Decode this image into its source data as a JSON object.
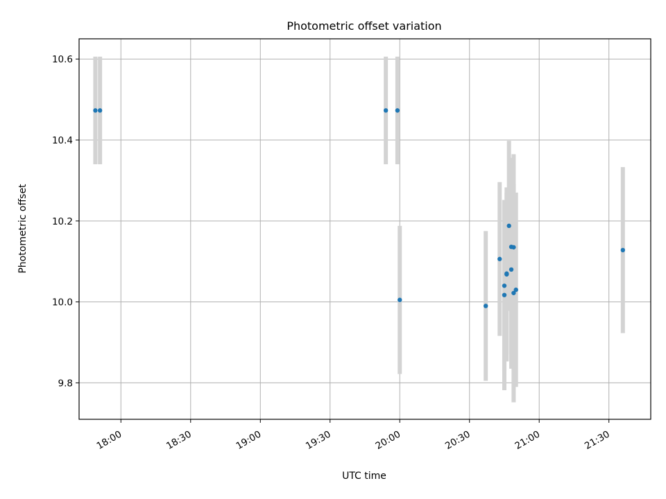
{
  "chart_data": {
    "type": "scatter",
    "title": "Photometric offset variation",
    "xlabel": "UTC time",
    "ylabel": "Photometric offset",
    "x_axis": {
      "type": "time",
      "range": [
        "17:42",
        "21:48"
      ],
      "ticks": [
        "18:00",
        "18:30",
        "19:00",
        "19:30",
        "20:00",
        "20:30",
        "21:00",
        "21:30"
      ]
    },
    "y_axis": {
      "range": [
        9.71,
        10.65
      ],
      "ticks": [
        "9.8",
        "10.0",
        "10.2",
        "10.4",
        "10.6"
      ]
    },
    "grid": true,
    "colors": {
      "point": "#1f77b4",
      "error_bar": "#d3d3d3",
      "grid": "#b0b0b0"
    },
    "points": [
      {
        "x": "17:49",
        "y": 10.473,
        "err": 0.133
      },
      {
        "x": "17:51",
        "y": 10.473,
        "err": 0.133
      },
      {
        "x": "19:54",
        "y": 10.473,
        "err": 0.133
      },
      {
        "x": "19:59",
        "y": 10.473,
        "err": 0.133
      },
      {
        "x": "20:00",
        "y": 10.005,
        "err": 0.183
      },
      {
        "x": "20:37",
        "y": 9.99,
        "err": 0.185
      },
      {
        "x": "20:43",
        "y": 10.106,
        "err": 0.19
      },
      {
        "x": "20:45",
        "y": 10.017,
        "err": 0.235
      },
      {
        "x": "20:45",
        "y": 10.04,
        "err": 0.21
      },
      {
        "x": "20:46",
        "y": 10.068,
        "err": 0.215
      },
      {
        "x": "20:46",
        "y": 10.07,
        "err": 0.2
      },
      {
        "x": "20:47",
        "y": 10.188,
        "err": 0.21
      },
      {
        "x": "20:48",
        "y": 10.136,
        "err": 0.22
      },
      {
        "x": "20:48",
        "y": 10.08,
        "err": 0.245
      },
      {
        "x": "20:49",
        "y": 10.135,
        "err": 0.23
      },
      {
        "x": "20:49",
        "y": 10.022,
        "err": 0.27
      },
      {
        "x": "20:50",
        "y": 10.03,
        "err": 0.24
      },
      {
        "x": "21:36",
        "y": 10.128,
        "err": 0.205
      }
    ]
  }
}
